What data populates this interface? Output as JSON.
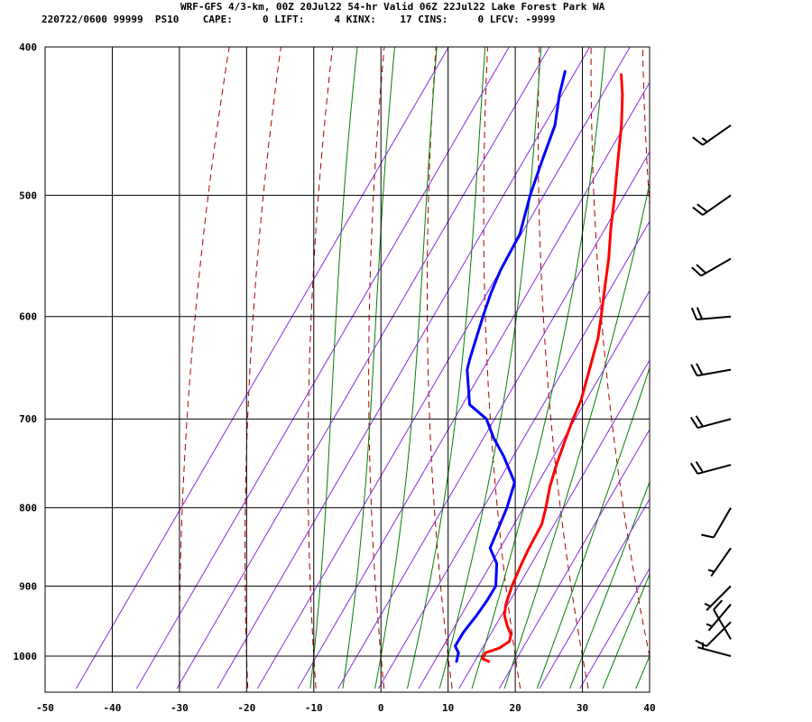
{
  "header": {
    "title": "WRF-GFS 4/3-km, 00Z 20Jul22 54-hr Valid 06Z 22Jul22 Lake Forest Park WA",
    "indices": "220722/0600 99999  PS10    CAPE:     0 LIFT:     4 KINX:    17 CINS:     0 LFCV: -9999"
  },
  "colors": {
    "temperature": "#ff0000",
    "dewpoint": "#0000ff",
    "dry_adiabat": "#aa0000",
    "moist_adiabat": "#008000",
    "mixing_ratio": "#8a2be2",
    "grid": "#000000"
  },
  "chart_data": {
    "type": "line",
    "title": "WRF-GFS 4/3-km, 00Z 20Jul22 54-hr Valid 06Z 22Jul22 Lake Forest Park WA",
    "chart_kind": "Skew-T log-P sounding",
    "xlabel": "",
    "ylabel": "",
    "y_scale": "log",
    "y_reversed": true,
    "xlim": [
      -50,
      40
    ],
    "ylim": [
      1040,
      400
    ],
    "x_ticks": [
      -50,
      -40,
      -30,
      -20,
      -10,
      0,
      10,
      20,
      30,
      40
    ],
    "y_ticks": [
      400,
      500,
      600,
      700,
      800,
      900,
      1000
    ],
    "grid": true,
    "series": [
      {
        "key": "temperature",
        "points": [
          {
            "p": 1008,
            "t": 16.6
          },
          {
            "p": 1004,
            "t": 15.4
          },
          {
            "p": 995,
            "t": 15.2
          },
          {
            "p": 988,
            "t": 16.8
          },
          {
            "p": 978,
            "t": 17.6
          },
          {
            "p": 968,
            "t": 17.1
          },
          {
            "p": 955,
            "t": 15.6
          },
          {
            "p": 940,
            "t": 14.1
          },
          {
            "p": 925,
            "t": 13.2
          },
          {
            "p": 900,
            "t": 12.2
          },
          {
            "p": 870,
            "t": 11.3
          },
          {
            "p": 850,
            "t": 10.8
          },
          {
            "p": 820,
            "t": 10.2
          },
          {
            "p": 800,
            "t": 9.1
          },
          {
            "p": 775,
            "t": 7.5
          },
          {
            "p": 750,
            "t": 6.2
          },
          {
            "p": 720,
            "t": 4.8
          },
          {
            "p": 700,
            "t": 3.9
          },
          {
            "p": 680,
            "t": 3.1
          },
          {
            "p": 650,
            "t": 1.2
          },
          {
            "p": 620,
            "t": -0.8
          },
          {
            "p": 600,
            "t": -2.6
          },
          {
            "p": 570,
            "t": -5.5
          },
          {
            "p": 550,
            "t": -7.5
          },
          {
            "p": 525,
            "t": -10.4
          },
          {
            "p": 500,
            "t": -13.2
          },
          {
            "p": 475,
            "t": -16.3
          },
          {
            "p": 450,
            "t": -19.5
          },
          {
            "p": 430,
            "t": -22.5
          },
          {
            "p": 417,
            "t": -24.8
          }
        ]
      },
      {
        "key": "dewpoint",
        "points": [
          {
            "p": 1008,
            "t": 11.8
          },
          {
            "p": 995,
            "t": 11.2
          },
          {
            "p": 985,
            "t": 10.0
          },
          {
            "p": 965,
            "t": 9.8
          },
          {
            "p": 940,
            "t": 10.0
          },
          {
            "p": 920,
            "t": 10.0
          },
          {
            "p": 900,
            "t": 9.8
          },
          {
            "p": 870,
            "t": 7.6
          },
          {
            "p": 850,
            "t": 5.0
          },
          {
            "p": 835,
            "t": 4.5
          },
          {
            "p": 800,
            "t": 3.3
          },
          {
            "p": 770,
            "t": 1.8
          },
          {
            "p": 740,
            "t": -2.6
          },
          {
            "p": 720,
            "t": -6.0
          },
          {
            "p": 700,
            "t": -9.0
          },
          {
            "p": 685,
            "t": -13.0
          },
          {
            "p": 650,
            "t": -17.0
          },
          {
            "p": 640,
            "t": -17.7
          },
          {
            "p": 600,
            "t": -20.2
          },
          {
            "p": 580,
            "t": -21.4
          },
          {
            "p": 560,
            "t": -22.4
          },
          {
            "p": 530,
            "t": -23.3
          },
          {
            "p": 500,
            "t": -25.8
          },
          {
            "p": 475,
            "t": -27.6
          },
          {
            "p": 450,
            "t": -29.4
          },
          {
            "p": 430,
            "t": -31.9
          },
          {
            "p": 415,
            "t": -33.5
          }
        ]
      }
    ],
    "dry_adiabats_theta_c": [
      -30,
      -20,
      -10,
      0,
      10,
      20,
      30,
      40,
      50,
      60,
      70,
      80,
      90,
      100,
      110
    ],
    "moist_adiabats_T1000_c": [
      -10,
      -5,
      0,
      5,
      10,
      15,
      20,
      25,
      30,
      35,
      40
    ],
    "mixing_ratio_lines_ds_c": [
      -42,
      -33,
      -27,
      -21,
      -15,
      -9,
      -3,
      3,
      9,
      15,
      21,
      27,
      33
    ],
    "wind_barbs": [
      {
        "p": 1000,
        "dir": 285,
        "kt": 5
      },
      {
        "p": 975,
        "dir": 330,
        "kt": 10
      },
      {
        "p": 950,
        "dir": 225,
        "kt": 10
      },
      {
        "p": 925,
        "dir": 220,
        "kt": 5
      },
      {
        "p": 900,
        "dir": 225,
        "kt": 5
      },
      {
        "p": 850,
        "dir": 215,
        "kt": 5
      },
      {
        "p": 800,
        "dir": 210,
        "kt": 10
      },
      {
        "p": 750,
        "dir": 255,
        "kt": 20
      },
      {
        "p": 700,
        "dir": 255,
        "kt": 20
      },
      {
        "p": 650,
        "dir": 260,
        "kt": 20
      },
      {
        "p": 600,
        "dir": 265,
        "kt": 20
      },
      {
        "p": 550,
        "dir": 240,
        "kt": 20
      },
      {
        "p": 500,
        "dir": 235,
        "kt": 20
      },
      {
        "p": 450,
        "dir": 235,
        "kt": 15
      }
    ]
  }
}
